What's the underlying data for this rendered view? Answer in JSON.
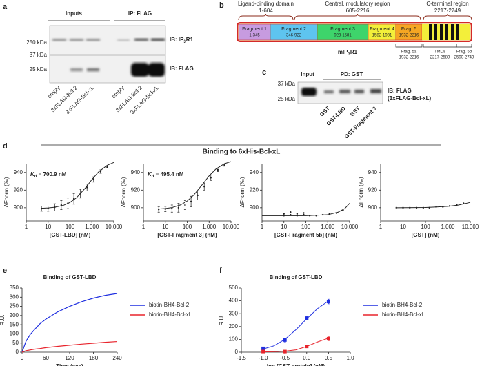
{
  "figure": {
    "a": {
      "label": "a",
      "groups": [
        "Inputs",
        "IP: FLAG"
      ],
      "markers": [
        "250 kDa",
        "37 kDa",
        "25 kDa"
      ],
      "antibodies": [
        "IB: IP",
        "3",
        "R1",
        "IB: FLAG"
      ],
      "lanes": [
        "empty",
        "3xFLAG-Bcl-2",
        "3xFLAG-Bcl-xL",
        "empty",
        "3xFLAG-Bcl-2",
        "3xFLAG-Bcl-xL"
      ]
    },
    "b": {
      "label": "b",
      "regions": [
        {
          "name": "Ligand-binding domain",
          "range": "1-604"
        },
        {
          "name": "Central, modulatory region",
          "range": "605-2216"
        },
        {
          "name": "C-terminal region",
          "range": "2217-2749"
        }
      ],
      "fragments": [
        {
          "name": "Fragment 1",
          "range": "1-345"
        },
        {
          "name": "Fragment 2",
          "range": "346-922"
        },
        {
          "name": "Fragment 3",
          "range": "923-1581"
        },
        {
          "name": "Fragment 4",
          "range": "1582-1931"
        },
        {
          "name": "Frag. 5",
          "range": "1932-2216"
        }
      ],
      "protein": [
        "mIP",
        "3",
        "R1"
      ],
      "subregions": [
        {
          "name": "Frag. 5a",
          "range": "1932-2216"
        },
        {
          "name": "TMDs",
          "range": "2217-2589"
        },
        {
          "name": "Frag. 5b",
          "range": "2590-2749"
        }
      ]
    },
    "c": {
      "label": "c",
      "groups": [
        "Input",
        "PD: GST"
      ],
      "markers": [
        "37 kDa",
        "25 kDa"
      ],
      "antibodies": [
        "IB: FLAG",
        "(3xFLAG-Bcl-xL)"
      ],
      "lanes": [
        "GST",
        "GST-LBD",
        "GST",
        "GST-Fragment 3"
      ]
    },
    "d": {
      "label": "d",
      "title": "Binding to 6xHis-Bcl-xL"
    },
    "e": {
      "label": "e"
    },
    "f": {
      "label": "f"
    }
  },
  "chart_data": [
    {
      "type": "scatter",
      "ylabel": "ΔFnorm (‰)",
      "xlabel": "[GST-LBD] (nM)",
      "xscale": "log",
      "annotation": {
        "symbol": "K",
        "subscript": "d",
        "text": " = 700.9 nM"
      },
      "xlim": [
        1,
        10000
      ],
      "xticks": [
        1,
        10,
        100,
        {
          "value": 1000,
          "label": "1,000"
        },
        {
          "value": 10000,
          "label": "10,000"
        }
      ],
      "ylim": [
        885,
        950
      ],
      "yticks": [
        900,
        920,
        940
      ],
      "color": "#222222",
      "series": [
        {
          "x": [
            5,
            10,
            20,
            40,
            80,
            150,
            300,
            600,
            1200,
            2500,
            5000
          ],
          "values": [
            899,
            899,
            900.5,
            903,
            905,
            910,
            916,
            923,
            932,
            941,
            946
          ],
          "errors": [
            3,
            3,
            4,
            5,
            6,
            6,
            5,
            4,
            3,
            2,
            1
          ],
          "fit": {
            "x": [
              5,
              10,
              20,
              50,
              100,
              200,
              500,
              1000,
              2000,
              5000,
              10000
            ],
            "values": [
              899.4,
              899.8,
              900.6,
              902.7,
              906,
              911.4,
              922.3,
              931.9,
              940.5,
              948.1,
              951.3
            ]
          }
        }
      ]
    },
    {
      "type": "scatter",
      "ylabel": "ΔFnorm (‰)",
      "xlabel": "[GST-Fragment 3] (nM)",
      "xscale": "log",
      "annotation": {
        "symbol": "K",
        "subscript": "d",
        "text": " = 495.4 nM"
      },
      "xlim": [
        1,
        10000
      ],
      "xticks": [
        1,
        10,
        100,
        {
          "value": 1000,
          "label": "1,000"
        },
        {
          "value": 10000,
          "label": "10,000"
        }
      ],
      "ylim": [
        885,
        950
      ],
      "yticks": [
        900,
        920,
        940
      ],
      "color": "#222222",
      "series": [
        {
          "x": [
            5,
            10,
            20,
            40,
            80,
            150,
            300,
            600,
            1200,
            2500,
            5000
          ],
          "values": [
            898,
            898.5,
            899,
            900,
            903,
            907,
            914,
            924,
            934,
            943,
            948
          ],
          "errors": [
            3,
            3,
            4,
            5,
            5,
            6,
            5,
            4,
            3,
            2,
            1
          ],
          "fit": {
            "x": [
              5,
              10,
              20,
              50,
              100,
              200,
              500,
              1000,
              2000,
              5000,
              10000
            ],
            "values": [
              898.6,
              899.1,
              900.2,
              903.2,
              907.6,
              914.4,
              926.6,
              936.1,
              943.7,
              949.9,
              952.3
            ]
          }
        }
      ]
    },
    {
      "type": "scatter",
      "ylabel": "ΔFnorm (‰)",
      "xlabel": "[GST-Fragment 5b] (nM)",
      "xscale": "log",
      "xlim": [
        1,
        10000
      ],
      "xticks": [
        1,
        10,
        100,
        {
          "value": 1000,
          "label": "1,000"
        },
        {
          "value": 10000,
          "label": "10,000"
        }
      ],
      "ylim": [
        885,
        950
      ],
      "yticks": [
        900,
        920,
        940
      ],
      "color": "#222222",
      "series": [
        {
          "x": [
            10,
            10,
            20,
            20,
            40,
            40,
            80,
            80,
            150,
            300,
            600,
            1200,
            2500,
            5000
          ],
          "values": [
            893,
            891,
            895,
            892,
            893,
            891,
            894,
            892,
            891,
            891,
            892,
            893,
            894,
            897
          ],
          "fit": {
            "x": [
              1,
              100,
              1000,
              3000,
              6000,
              10000
            ],
            "values": [
              891,
              891,
              892,
              895,
              899,
              905
            ]
          }
        }
      ]
    },
    {
      "type": "scatter",
      "ylabel": "ΔFnorm (‰)",
      "xlabel": "[GST]  (nM)",
      "xscale": "log",
      "xlim": [
        1,
        10000
      ],
      "xticks": [
        1,
        10,
        100,
        {
          "value": 1000,
          "label": "1,000"
        },
        {
          "value": 10000,
          "label": "10,000"
        }
      ],
      "ylim": [
        885,
        950
      ],
      "yticks": [
        900,
        920,
        940
      ],
      "color": "#222222",
      "series": [
        {
          "x": [
            5,
            10,
            20,
            40,
            80,
            150,
            300,
            600,
            1200,
            2500,
            5000
          ],
          "values": [
            900,
            900,
            900,
            900,
            900,
            900,
            901,
            901,
            902,
            903,
            905
          ],
          "fit": {
            "x": [
              5,
              100,
              1000,
              3000,
              10000
            ],
            "values": [
              900,
              900.3,
              901.5,
              903,
              906
            ]
          }
        }
      ]
    },
    {
      "type": "line",
      "title": "Binding of GST-LBD",
      "ylabel": "R.U.",
      "xlabel": "Time (sec)",
      "xlim": [
        0,
        240
      ],
      "xticks": [
        0,
        60,
        120,
        180,
        240
      ],
      "ylim": [
        0,
        350
      ],
      "yticks": [
        0,
        50,
        100,
        150,
        200,
        250,
        300,
        350
      ],
      "series": [
        {
          "name": "biotin-BH4-Bcl-2",
          "color": "#1f2fe0",
          "x": [
            0,
            10,
            20,
            30,
            45,
            60,
            90,
            120,
            150,
            180,
            210,
            240
          ],
          "values": [
            0,
            60,
            95,
            120,
            155,
            180,
            220,
            250,
            275,
            295,
            310,
            320
          ]
        },
        {
          "name": "biotin-BH4-Bcl-xL",
          "color": "#e8242c",
          "x": [
            0,
            10,
            20,
            30,
            45,
            60,
            90,
            120,
            150,
            180,
            210,
            240
          ],
          "values": [
            0,
            8,
            12,
            16,
            20,
            25,
            32,
            38,
            44,
            49,
            54,
            58
          ]
        }
      ]
    },
    {
      "type": "scatter",
      "title": "Binding of GST-LBD",
      "ylabel": "R.U.",
      "xlabel": "log [GST-protein] (µM)",
      "xlim": [
        -1.5,
        1.0
      ],
      "xticks": [
        -1.5,
        {
          "value": -1,
          "label": "-1.0"
        },
        -0.5,
        {
          "value": 0,
          "label": "0.0"
        },
        0.5,
        {
          "value": 1,
          "label": "1.0"
        }
      ],
      "ylim": [
        0,
        500
      ],
      "yticks": [
        0,
        100,
        200,
        300,
        400,
        500
      ],
      "series": [
        {
          "name": "biotin-BH4-Bcl-2",
          "color": "#1f2fe0",
          "x": [
            -1,
            -0.5,
            0,
            0.5
          ],
          "values": [
            30,
            95,
            265,
            395
          ],
          "errors": [
            8,
            15,
            12,
            18
          ],
          "fit": {
            "x": [
              -1,
              -0.75,
              -0.5,
              -0.25,
              0,
              0.25,
              0.5
            ],
            "values": [
              25,
              50,
              100,
              175,
              260,
              340,
              400
            ]
          }
        },
        {
          "name": "biotin-BH4-Bcl-xL",
          "color": "#e8242c",
          "x": [
            -1,
            -0.5,
            0,
            0.5
          ],
          "values": [
            5,
            5,
            45,
            105
          ],
          "errors": [
            3,
            3,
            6,
            15
          ],
          "fit": {
            "x": [
              -1,
              -0.75,
              -0.5,
              -0.25,
              0,
              0.25,
              0.5
            ],
            "values": [
              2,
              4,
              8,
              18,
              45,
              80,
              110
            ]
          }
        }
      ]
    }
  ]
}
